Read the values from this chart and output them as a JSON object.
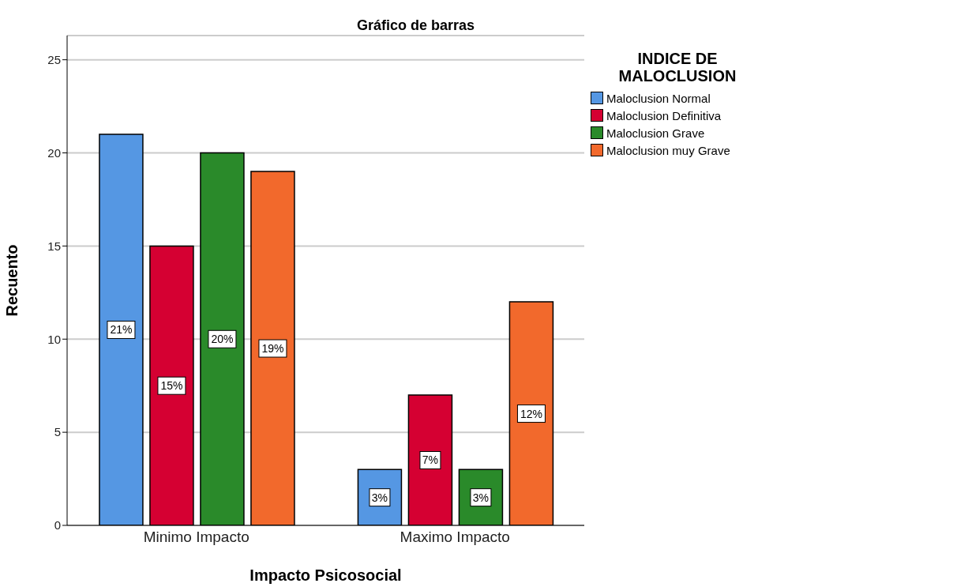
{
  "chart_data": {
    "type": "bar",
    "title": "Gráfico de barras",
    "xlabel": "Impacto Psicosocial",
    "ylabel": "Recuento",
    "legend_title": "INDICE DE MALOCLUSION",
    "categories": [
      "Minimo Impacto",
      "Maximo Impacto"
    ],
    "series": [
      {
        "name": "Maloclusion Normal",
        "color": "#5597e3",
        "values": [
          21,
          3
        ],
        "value_labels": [
          "21%",
          "3%"
        ]
      },
      {
        "name": "Maloclusion Definitiva",
        "color": "#d50032",
        "values": [
          15,
          7
        ],
        "value_labels": [
          "15%",
          "7%"
        ]
      },
      {
        "name": "Maloclusion Grave",
        "color": "#2a8a2a",
        "values": [
          20,
          3
        ],
        "value_labels": [
          "20%",
          "3%"
        ]
      },
      {
        "name": "Maloclusion muy Grave",
        "color": "#f2692c",
        "values": [
          19,
          12
        ],
        "value_labels": [
          "19%",
          "12%"
        ]
      }
    ],
    "ylim": [
      0,
      26.3
    ],
    "yticks": [
      0,
      5,
      10,
      15,
      20,
      25
    ],
    "grid": "y",
    "legend": "right"
  }
}
